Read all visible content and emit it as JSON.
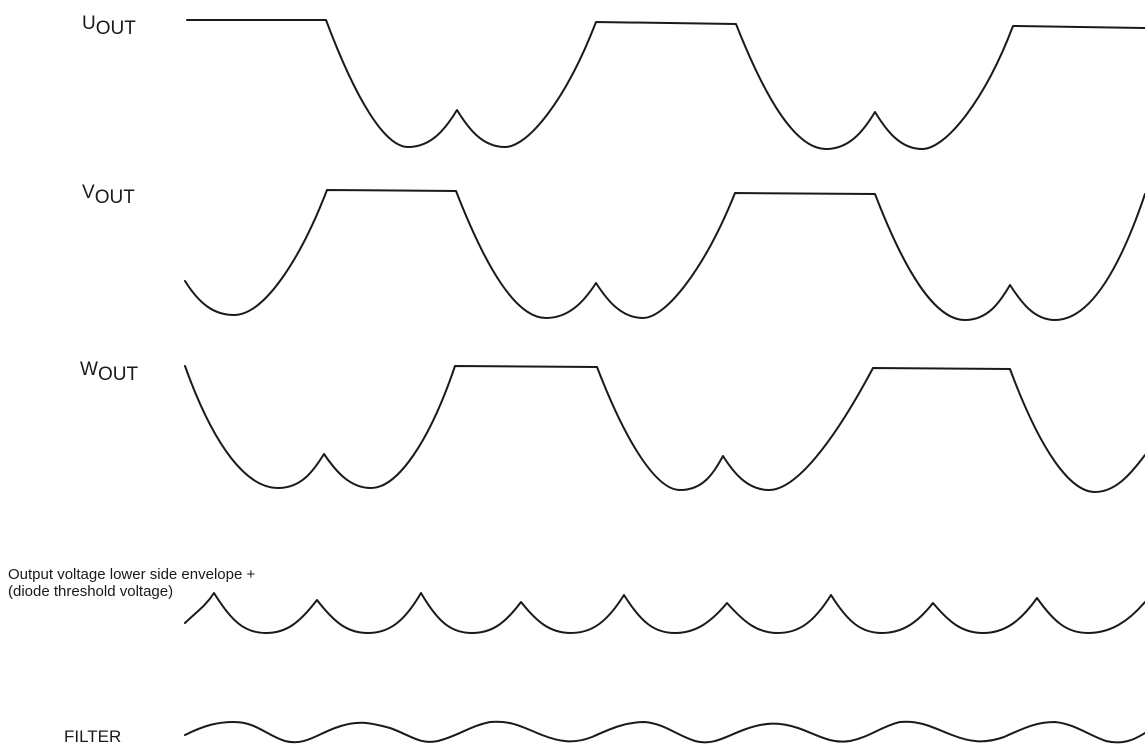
{
  "traces": {
    "u": {
      "label_main": "U",
      "label_sub": "OUT"
    },
    "v": {
      "label_main": "V",
      "label_sub": "OUT"
    },
    "w": {
      "label_main": "W",
      "label_sub": "OUT"
    }
  },
  "envelope": {
    "line1": "Output voltage lower side envelope +",
    "line2": "(diode threshold voltage)"
  },
  "filter": {
    "label": "FILTER"
  },
  "colors": {
    "stroke": "#1a1a1a",
    "background": "#ffffff"
  }
}
